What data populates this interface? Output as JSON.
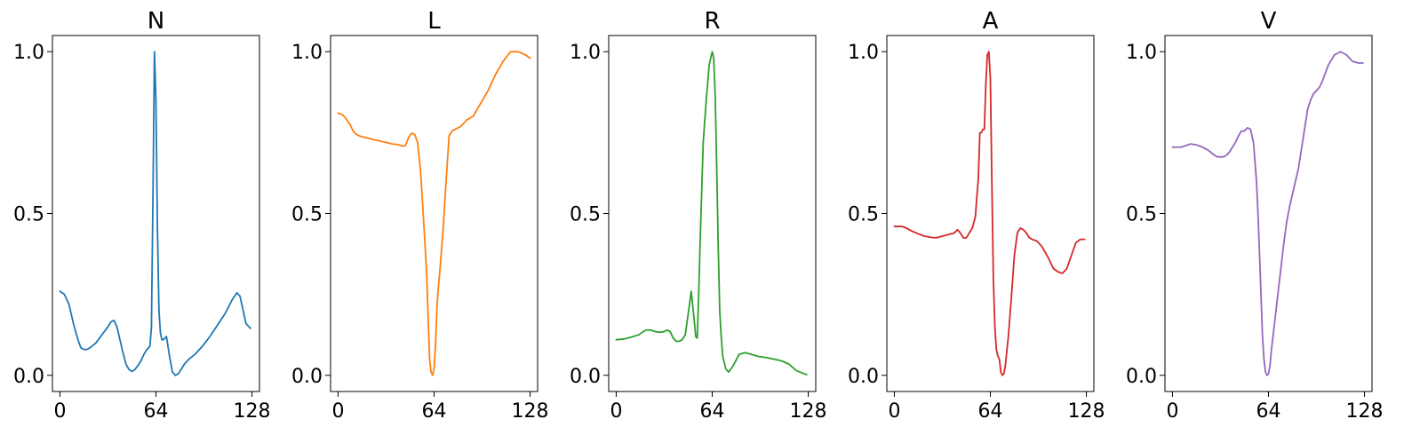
{
  "chart_data": [
    {
      "type": "line",
      "title": "N",
      "color": "#1f77b4",
      "xlim": [
        -5,
        133
      ],
      "ylim": [
        -0.05,
        1.05
      ],
      "xticks": [
        0,
        64,
        128
      ],
      "xtick_labels": [
        "0",
        "64",
        "128"
      ],
      "yticks": [
        0.0,
        0.5,
        1.0
      ],
      "ytick_labels": [
        "0.0",
        "0.5",
        "1.0"
      ],
      "grid": false,
      "series": [
        {
          "x": [
            0,
            3,
            6,
            9,
            12,
            14,
            16,
            18,
            20,
            24,
            28,
            32,
            34,
            36,
            38,
            40,
            42,
            44,
            46,
            48,
            50,
            52,
            54,
            56,
            58,
            60,
            61,
            62,
            63,
            64,
            65,
            66,
            67,
            68,
            69,
            71,
            73,
            75,
            77,
            79,
            81,
            83,
            86,
            90,
            95,
            100,
            105,
            110,
            115,
            118,
            120,
            124,
            127
          ],
          "y": [
            0.26,
            0.25,
            0.22,
            0.16,
            0.11,
            0.085,
            0.08,
            0.08,
            0.085,
            0.1,
            0.125,
            0.15,
            0.165,
            0.17,
            0.15,
            0.11,
            0.07,
            0.035,
            0.018,
            0.012,
            0.018,
            0.03,
            0.045,
            0.065,
            0.08,
            0.09,
            0.15,
            0.55,
            1.0,
            0.85,
            0.45,
            0.2,
            0.13,
            0.11,
            0.11,
            0.12,
            0.06,
            0.01,
            0.0,
            0.005,
            0.02,
            0.035,
            0.05,
            0.065,
            0.09,
            0.12,
            0.155,
            0.19,
            0.235,
            0.255,
            0.245,
            0.16,
            0.145
          ]
        }
      ]
    },
    {
      "type": "line",
      "title": "L",
      "color": "#ff7f0e",
      "xlim": [
        -5,
        133
      ],
      "ylim": [
        -0.05,
        1.05
      ],
      "xticks": [
        0,
        64,
        128
      ],
      "xtick_labels": [
        "0",
        "64",
        "128"
      ],
      "yticks": [
        0.0,
        0.5,
        1.0
      ],
      "ytick_labels": [
        "0.0",
        "0.5",
        "1.0"
      ],
      "grid": false,
      "series": [
        {
          "x": [
            0,
            3,
            5,
            8,
            10,
            12,
            14,
            18,
            24,
            30,
            36,
            40,
            43,
            45,
            47,
            49,
            51,
            53,
            55,
            57,
            59,
            61,
            62,
            63,
            64,
            65,
            66,
            67,
            68,
            70,
            72,
            74,
            76,
            78,
            80,
            82,
            84,
            86,
            90,
            95,
            100,
            105,
            110,
            115,
            120,
            125,
            128
          ],
          "y": [
            0.81,
            0.805,
            0.795,
            0.775,
            0.755,
            0.745,
            0.74,
            0.735,
            0.728,
            0.722,
            0.715,
            0.713,
            0.708,
            0.71,
            0.735,
            0.748,
            0.745,
            0.72,
            0.63,
            0.48,
            0.32,
            0.05,
            0.01,
            0.0,
            0.02,
            0.1,
            0.22,
            0.28,
            0.33,
            0.45,
            0.6,
            0.74,
            0.755,
            0.76,
            0.765,
            0.77,
            0.78,
            0.79,
            0.8,
            0.84,
            0.88,
            0.93,
            0.97,
            1.0,
            1.0,
            0.99,
            0.98
          ]
        }
      ]
    },
    {
      "type": "line",
      "title": "R",
      "color": "#2ca02c",
      "xlim": [
        -5,
        133
      ],
      "ylim": [
        -0.05,
        1.05
      ],
      "xticks": [
        0,
        64,
        128
      ],
      "xtick_labels": [
        "0",
        "64",
        "128"
      ],
      "yticks": [
        0.0,
        0.5,
        1.0
      ],
      "ytick_labels": [
        "0.0",
        "0.5",
        "1.0"
      ],
      "grid": false,
      "series": [
        {
          "x": [
            0,
            5,
            10,
            15,
            18,
            20,
            23,
            26,
            29,
            32,
            34,
            36,
            38,
            40,
            42,
            44,
            46,
            48,
            50,
            52,
            53,
            54,
            55,
            56,
            58,
            60,
            62,
            64,
            65,
            66,
            67,
            68,
            69,
            70,
            71,
            73,
            75,
            78,
            82,
            86,
            90,
            95,
            100,
            105,
            110,
            115,
            120,
            125,
            127
          ],
          "y": [
            0.11,
            0.112,
            0.118,
            0.125,
            0.135,
            0.14,
            0.14,
            0.135,
            0.133,
            0.135,
            0.14,
            0.135,
            0.115,
            0.105,
            0.105,
            0.11,
            0.125,
            0.19,
            0.26,
            0.17,
            0.12,
            0.115,
            0.25,
            0.42,
            0.72,
            0.85,
            0.96,
            1.0,
            0.98,
            0.86,
            0.64,
            0.4,
            0.2,
            0.12,
            0.06,
            0.02,
            0.01,
            0.03,
            0.065,
            0.07,
            0.065,
            0.058,
            0.055,
            0.05,
            0.045,
            0.035,
            0.015,
            0.005,
            0.002
          ]
        }
      ]
    },
    {
      "type": "line",
      "title": "A",
      "color": "#d62728",
      "xlim": [
        -5,
        133
      ],
      "ylim": [
        -0.05,
        1.05
      ],
      "xticks": [
        0,
        64,
        128
      ],
      "xtick_labels": [
        "0",
        "64",
        "128"
      ],
      "yticks": [
        0.0,
        0.5,
        1.0
      ],
      "ytick_labels": [
        "0.0",
        "0.5",
        "1.0"
      ],
      "grid": false,
      "series": [
        {
          "x": [
            0,
            3,
            5,
            8,
            12,
            16,
            20,
            25,
            28,
            32,
            36,
            40,
            42,
            44,
            46,
            48,
            50,
            52,
            54,
            56,
            57,
            58,
            59,
            60,
            61,
            62,
            63,
            64,
            65,
            66,
            67,
            68,
            69,
            70,
            71,
            72,
            73,
            74,
            76,
            78,
            80,
            82,
            84,
            86,
            88,
            90,
            92,
            95,
            98,
            100,
            103,
            106,
            109,
            112,
            115,
            118,
            121,
            124,
            127
          ],
          "y": [
            0.46,
            0.46,
            0.46,
            0.455,
            0.445,
            0.437,
            0.43,
            0.426,
            0.425,
            0.43,
            0.435,
            0.44,
            0.45,
            0.44,
            0.425,
            0.425,
            0.44,
            0.455,
            0.49,
            0.61,
            0.75,
            0.75,
            0.76,
            0.76,
            0.9,
            0.99,
            1.0,
            0.92,
            0.6,
            0.3,
            0.15,
            0.08,
            0.06,
            0.05,
            0.01,
            0.0,
            0.005,
            0.03,
            0.12,
            0.24,
            0.37,
            0.44,
            0.455,
            0.45,
            0.44,
            0.425,
            0.42,
            0.415,
            0.4,
            0.385,
            0.36,
            0.33,
            0.32,
            0.315,
            0.33,
            0.37,
            0.41,
            0.42,
            0.42
          ]
        }
      ]
    },
    {
      "type": "line",
      "title": "V",
      "color": "#9467bd",
      "xlim": [
        -5,
        133
      ],
      "ylim": [
        -0.05,
        1.05
      ],
      "xticks": [
        0,
        64,
        128
      ],
      "xtick_labels": [
        "0",
        "64",
        "128"
      ],
      "yticks": [
        0.0,
        0.5,
        1.0
      ],
      "ytick_labels": [
        "0.0",
        "0.5",
        "1.0"
      ],
      "grid": false,
      "series": [
        {
          "x": [
            0,
            3,
            6,
            9,
            12,
            16,
            20,
            24,
            28,
            30,
            32,
            34,
            36,
            38,
            40,
            42,
            44,
            46,
            48,
            50,
            52,
            54,
            55,
            56,
            57,
            58,
            59,
            60,
            61,
            62,
            63,
            64,
            65,
            66,
            68,
            70,
            72,
            74,
            76,
            78,
            80,
            82,
            84,
            86,
            88,
            90,
            92,
            94,
            96,
            98,
            100,
            104,
            108,
            112,
            116,
            120,
            124,
            127
          ],
          "y": [
            0.705,
            0.705,
            0.705,
            0.71,
            0.715,
            0.712,
            0.705,
            0.695,
            0.68,
            0.675,
            0.675,
            0.675,
            0.68,
            0.69,
            0.705,
            0.72,
            0.74,
            0.755,
            0.755,
            0.765,
            0.76,
            0.72,
            0.66,
            0.6,
            0.5,
            0.38,
            0.25,
            0.12,
            0.05,
            0.01,
            0.0,
            0.005,
            0.03,
            0.08,
            0.16,
            0.24,
            0.32,
            0.4,
            0.47,
            0.52,
            0.56,
            0.6,
            0.64,
            0.7,
            0.76,
            0.82,
            0.85,
            0.87,
            0.88,
            0.89,
            0.91,
            0.96,
            0.99,
            1.0,
            0.99,
            0.97,
            0.965,
            0.965
          ]
        }
      ]
    }
  ]
}
